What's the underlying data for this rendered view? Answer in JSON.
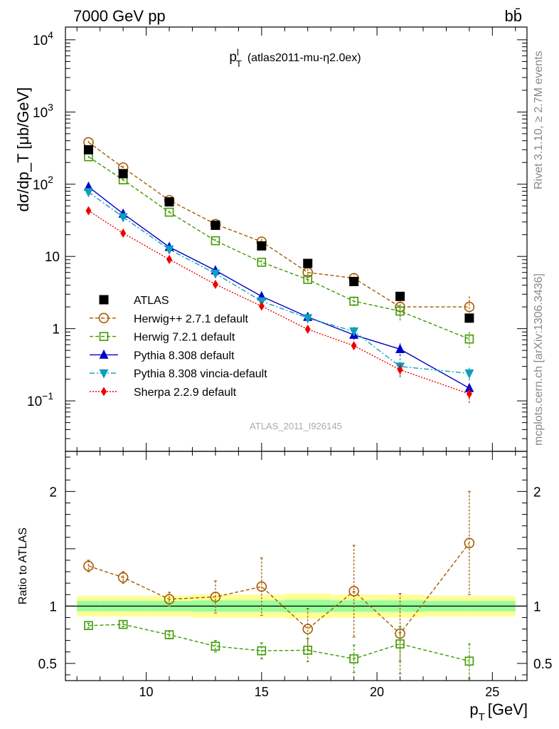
{
  "header": {
    "left": "7000 GeV pp",
    "right": "bb̄"
  },
  "side_labels": {
    "rivet": "Rivet 3.1.10, ≥ 2.7M events",
    "mcplots": "mcplots.cern.ch [arXiv:1306.3436]"
  },
  "chart_data": [
    {
      "type": "scatter",
      "title": "p_T^l (atlas2011-mu-η2.0ex)",
      "title_main": "p",
      "title_sup": "l",
      "title_sub": "T",
      "title_rest": "(atlas2011-mu-η2.0ex)",
      "watermark": "ATLAS_2011_I926145",
      "ylabel": "dσ/dp_T [μb/GeV]",
      "yscale": "log",
      "ylim": [
        0.02,
        15000
      ],
      "xlim": [
        6.5,
        26.5
      ],
      "y_ticks": [
        {
          "v": 10000,
          "base": "10",
          "exp": "4"
        },
        {
          "v": 1000,
          "base": "10",
          "exp": "3"
        },
        {
          "v": 100,
          "base": "10",
          "exp": "2"
        },
        {
          "v": 10,
          "base": "10",
          "exp": ""
        },
        {
          "v": 1,
          "base": "1",
          "exp": ""
        },
        {
          "v": 0.1,
          "base": "10",
          "exp": "−1"
        }
      ],
      "legend_position": "left-middle",
      "series": [
        {
          "name": "ATLAS",
          "color": "#000000",
          "marker": "square-filled",
          "line": "none",
          "x": [
            7.5,
            9,
            11,
            13,
            15,
            17,
            19,
            21,
            24
          ],
          "y": [
            300,
            140,
            57,
            27,
            14,
            8,
            4.5,
            2.8,
            1.4
          ]
        },
        {
          "name": "Herwig++ 2.7.1 default",
          "color": "#a65a00",
          "marker": "circle-open",
          "line": "dashed",
          "x": [
            7.5,
            9,
            11,
            13,
            15,
            17,
            19,
            21,
            24
          ],
          "y": [
            380,
            170,
            60,
            28,
            16,
            6,
            5,
            2,
            2
          ],
          "err": [
            0.05,
            0.06,
            0.06,
            0.07,
            0.1,
            0.12,
            0.18,
            0.35,
            0.4
          ]
        },
        {
          "name": "Herwig 7.2.1 default",
          "color": "#3f9a00",
          "marker": "square-open",
          "line": "dashed",
          "x": [
            7.5,
            9,
            11,
            13,
            15,
            17,
            19,
            21,
            24
          ],
          "y": [
            240,
            115,
            41,
            16.5,
            8.3,
            4.8,
            2.4,
            1.75,
            0.72
          ],
          "err": [
            0.03,
            0.04,
            0.05,
            0.06,
            0.08,
            0.1,
            0.15,
            0.25,
            0.25
          ]
        },
        {
          "name": "Pythia 8.308 default",
          "color": "#0000cc",
          "marker": "triangle-up",
          "line": "solid",
          "x": [
            7.5,
            9,
            11,
            13,
            15,
            17,
            19,
            21,
            24
          ],
          "y": [
            92,
            39,
            13.5,
            6.4,
            2.8,
            1.45,
            0.82,
            0.52,
            0.15
          ],
          "err": [
            0.03,
            0.04,
            0.05,
            0.06,
            0.1,
            0.12,
            0.15,
            0.2,
            0.15
          ]
        },
        {
          "name": "Pythia 8.308 vincia-default",
          "color": "#0e9fbe",
          "marker": "triangle-down",
          "line": "dashdot",
          "x": [
            7.5,
            9,
            11,
            13,
            15,
            17,
            19,
            21,
            24
          ],
          "y": [
            78,
            35,
            12.5,
            5.8,
            2.4,
            1.4,
            0.92,
            0.3,
            0.24
          ],
          "err": [
            0.03,
            0.04,
            0.05,
            0.06,
            0.1,
            0.12,
            0.15,
            0.3,
            0.2
          ]
        },
        {
          "name": "Sherpa 2.2.9 default",
          "color": "#ee0000",
          "marker": "diamond",
          "line": "dotted",
          "x": [
            7.5,
            9,
            11,
            13,
            15,
            17,
            19,
            21,
            24
          ],
          "y": [
            43,
            21,
            9.1,
            4.1,
            2.05,
            0.98,
            0.58,
            0.27,
            0.125
          ],
          "err": [
            0.03,
            0.04,
            0.05,
            0.06,
            0.08,
            0.1,
            0.12,
            0.2,
            0.25
          ]
        }
      ]
    },
    {
      "type": "scatter",
      "ylabel": "Ratio to ATLAS",
      "xlabel_main": "p",
      "xlabel_sub": "T",
      "xlabel_rest": "[GeV]",
      "ylim": [
        0.35,
        2.35
      ],
      "xlim": [
        6.5,
        26.5
      ],
      "x_ticks": [
        10,
        15,
        20,
        25
      ],
      "y_ticks": [
        {
          "v": 2,
          "label": "2"
        },
        {
          "v": 1,
          "label": "1"
        },
        {
          "v": 0.5,
          "label": "0.5"
        }
      ],
      "bands": {
        "edges": [
          7,
          8,
          10,
          12,
          14,
          16,
          18,
          20,
          22,
          24,
          26
        ],
        "yellow_half": [
          0.09,
          0.09,
          0.09,
          0.1,
          0.1,
          0.11,
          0.1,
          0.1,
          0.09,
          0.09
        ],
        "green_half": [
          0.045,
          0.045,
          0.045,
          0.05,
          0.05,
          0.055,
          0.05,
          0.05,
          0.045,
          0.045
        ],
        "yellow_color": "#ffff99",
        "green_color": "#99ff99"
      },
      "series": [
        {
          "name": "Herwig++ 2.7.1 default",
          "color": "#a65a00",
          "x": [
            7.5,
            9,
            11,
            13,
            15,
            17,
            19,
            21,
            24
          ],
          "y": [
            1.35,
            1.25,
            1.06,
            1.08,
            1.17,
            0.8,
            1.13,
            0.76,
            1.55
          ],
          "err": [
            0.05,
            0.05,
            0.06,
            0.14,
            0.25,
            0.18,
            0.4,
            0.35,
            0.45
          ]
        },
        {
          "name": "Herwig 7.2.1 default",
          "color": "#3f9a00",
          "x": [
            7.5,
            9,
            11,
            13,
            15,
            17,
            19,
            21,
            24
          ],
          "y": [
            0.83,
            0.84,
            0.75,
            0.65,
            0.61,
            0.615,
            0.54,
            0.67,
            0.52
          ],
          "err": [
            0.02,
            0.02,
            0.03,
            0.05,
            0.07,
            0.1,
            0.12,
            0.15,
            0.15
          ]
        }
      ]
    }
  ]
}
